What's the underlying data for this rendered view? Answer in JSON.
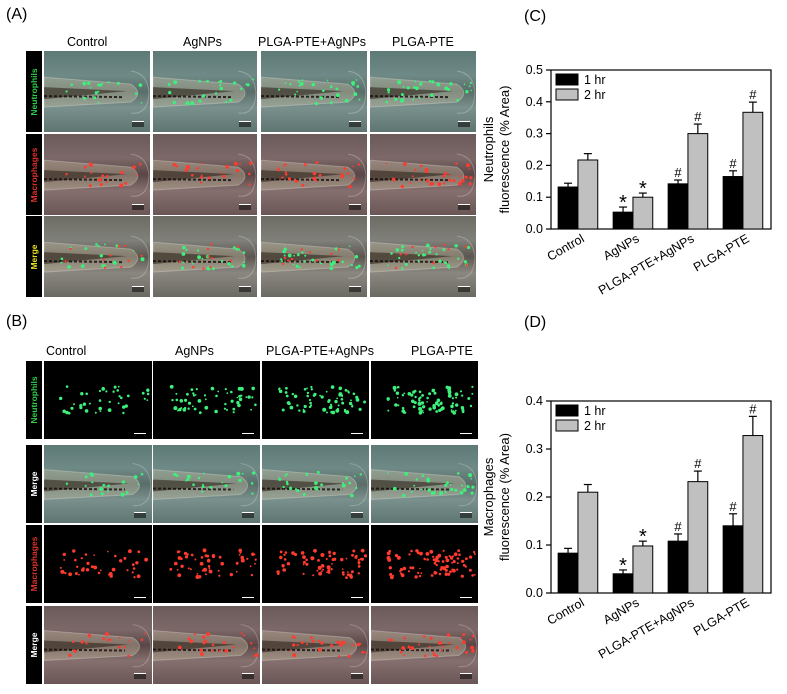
{
  "panels": {
    "A": {
      "letter": "(A)",
      "columns": [
        "Control",
        "AgNPs",
        "PLGA-PTE+AgNPs",
        "PLGA-PTE"
      ],
      "rows": [
        {
          "label": "Neutrophils",
          "color": "#2fcf4a",
          "type": "bf-green"
        },
        {
          "label": "Macrophages",
          "color": "#e0322a",
          "type": "bf-red"
        },
        {
          "label": "Merge",
          "color": "#e8e020",
          "type": "bf-merge"
        }
      ]
    },
    "B": {
      "letter": "(B)",
      "columns": [
        "Control",
        "AgNPs",
        "PLGA-PTE+AgNPs",
        "PLGA-PTE"
      ],
      "rows": [
        {
          "label": "Neutrophils",
          "color": "#2fcf4a",
          "type": "fl-green"
        },
        {
          "label": "Merge",
          "color": "#ffffff",
          "type": "bf-green"
        },
        {
          "label": "Macrophages",
          "color": "#e0322a",
          "type": "fl-red"
        },
        {
          "label": "Merge",
          "color": "#ffffff",
          "type": "bf-red"
        }
      ]
    },
    "C": {
      "letter": "(C)"
    },
    "D": {
      "letter": "(D)"
    }
  },
  "chart_data": [
    {
      "type": "bar",
      "panel": "C",
      "ylabel_line1": "Neutrophils",
      "ylabel_line2": "fluorescence (% Area)",
      "categories": [
        "Control",
        "AgNPs",
        "PLGA-PTE+AgNPs",
        "PLGA-PTE"
      ],
      "ylim": [
        0,
        0.5
      ],
      "yticks": [
        "0.0",
        "0.1",
        "0.2",
        "0.3",
        "0.4",
        "0.5"
      ],
      "legend_position": "top-left",
      "colors": [
        "#000000",
        "#c0c0c0"
      ],
      "series": [
        {
          "name": "1 hr",
          "values": [
            0.132,
            0.053,
            0.142,
            0.165
          ],
          "errors": [
            0.012,
            0.016,
            0.012,
            0.018
          ],
          "marks": [
            "",
            "*",
            "#",
            "#"
          ]
        },
        {
          "name": "2 hr",
          "values": [
            0.217,
            0.1,
            0.3,
            0.367
          ],
          "errors": [
            0.02,
            0.013,
            0.03,
            0.032
          ],
          "marks": [
            "",
            "*",
            "#",
            "#"
          ]
        }
      ]
    },
    {
      "type": "bar",
      "panel": "D",
      "ylabel_line1": "Macrophages",
      "ylabel_line2": "fluorescence (% Area)",
      "categories": [
        "Control",
        "AgNPs",
        "PLGA-PTE+AgNPs",
        "PLGA-PTE"
      ],
      "ylim": [
        0,
        0.4
      ],
      "yticks": [
        "0.0",
        "0.1",
        "0.2",
        "0.3",
        "0.4"
      ],
      "legend_position": "top-left",
      "colors": [
        "#000000",
        "#c0c0c0"
      ],
      "series": [
        {
          "name": "1 hr",
          "values": [
            0.083,
            0.04,
            0.108,
            0.14
          ],
          "errors": [
            0.01,
            0.008,
            0.015,
            0.025
          ],
          "marks": [
            "",
            "*",
            "#",
            "#"
          ]
        },
        {
          "name": "2 hr",
          "values": [
            0.21,
            0.098,
            0.232,
            0.328
          ],
          "errors": [
            0.016,
            0.01,
            0.022,
            0.04
          ],
          "marks": [
            "",
            "*",
            "#",
            "#"
          ]
        }
      ]
    }
  ]
}
